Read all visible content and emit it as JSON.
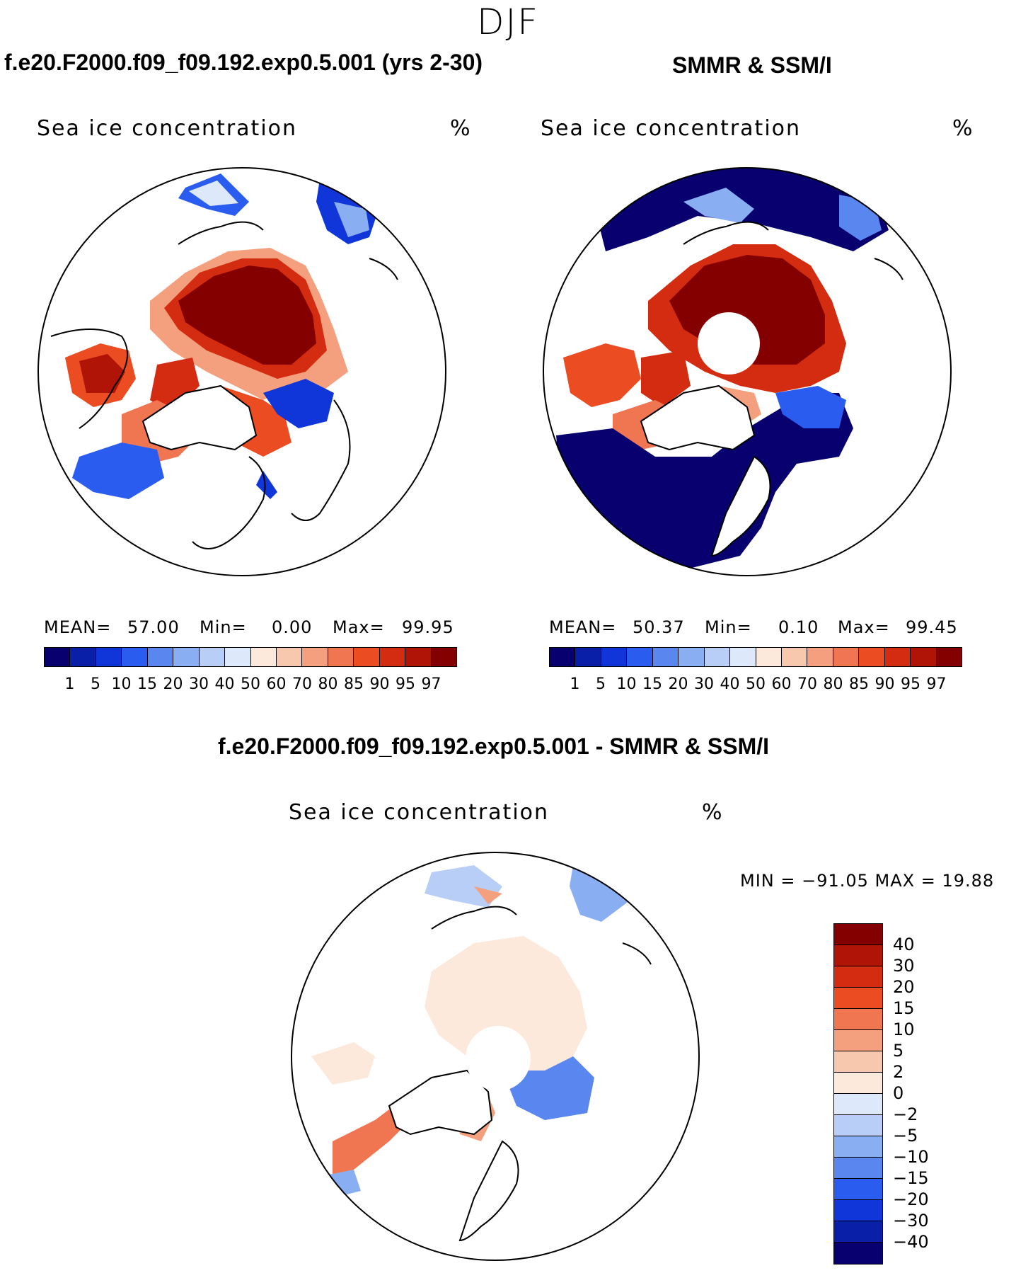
{
  "season": "DJF",
  "colors": {
    "abs_scale": [
      "#08006e",
      "#0a1fa8",
      "#1035d8",
      "#2a5cf0",
      "#5a86f0",
      "#8aaef2",
      "#b8cef6",
      "#dde9fb",
      "#fde9dc",
      "#f8c8ae",
      "#f4a07e",
      "#f07652",
      "#ec4c22",
      "#d42c10",
      "#b01406",
      "#840000"
    ],
    "diff_scale": [
      "#840000",
      "#b01406",
      "#d42c10",
      "#ec4c22",
      "#f07652",
      "#f4a07e",
      "#f8c8ae",
      "#fde9dc",
      "#dde9fb",
      "#b8cef6",
      "#8aaef2",
      "#5a86f0",
      "#2a5cf0",
      "#1035d8",
      "#0a1fa8",
      "#08006e"
    ]
  },
  "panels": {
    "model": {
      "title": "f.e20.F2000.f09_f09.192.exp0.5.001 (yrs 2-30)",
      "variable": "Sea ice concentration",
      "units": "%",
      "mean_label": "MEAN=",
      "mean": "57.00",
      "min_label": "Min=",
      "min": "0.00",
      "max_label": "Max=",
      "max": "99.95"
    },
    "obs": {
      "title": "SMMR & SSM/I",
      "variable": "Sea ice concentration",
      "units": "%",
      "mean_label": "MEAN=",
      "mean": "50.37",
      "min_label": "Min=",
      "min": "0.10",
      "max_label": "Max=",
      "max": "99.45"
    },
    "diff": {
      "title": "f.e20.F2000.f09_f09.192.exp0.5.001 - SMMR & SSM/I",
      "variable": "Sea ice concentration",
      "units": "%",
      "minmax": "MIN = −91.05 MAX =   19.88"
    }
  },
  "abs_ticks": [
    "1",
    "5",
    "10",
    "15",
    "20",
    "30",
    "40",
    "50",
    "60",
    "70",
    "80",
    "85",
    "90",
    "95",
    "97"
  ],
  "diff_ticks": [
    "40",
    "30",
    "20",
    "15",
    "10",
    "5",
    "2",
    "0",
    "−2",
    "−5",
    "−10",
    "−15",
    "−20",
    "−30",
    "−40"
  ]
}
